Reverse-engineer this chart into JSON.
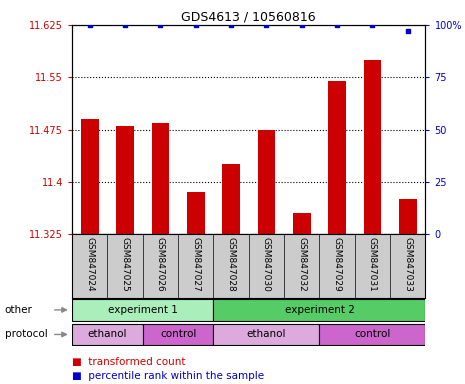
{
  "title": "GDS4613 / 10560816",
  "samples": [
    "GSM847024",
    "GSM847025",
    "GSM847026",
    "GSM847027",
    "GSM847028",
    "GSM847030",
    "GSM847032",
    "GSM847029",
    "GSM847031",
    "GSM847033"
  ],
  "bar_values": [
    11.49,
    11.48,
    11.485,
    11.385,
    11.425,
    11.475,
    11.355,
    11.545,
    11.575,
    11.375
  ],
  "percentile_values": [
    100,
    100,
    100,
    100,
    100,
    100,
    100,
    100,
    100,
    97
  ],
  "ylim_left": [
    11.325,
    11.625
  ],
  "ylim_right": [
    0,
    100
  ],
  "yticks_left": [
    11.325,
    11.4,
    11.475,
    11.55,
    11.625
  ],
  "yticks_right": [
    0,
    25,
    50,
    75,
    100
  ],
  "ytick_labels_right": [
    "0",
    "25",
    "50",
    "75",
    "100%"
  ],
  "bar_color": "#cc0000",
  "dot_color": "#0000cc",
  "bar_width": 0.5,
  "grid_linestyle": "dotted",
  "grid_color": "#000000",
  "grid_linewidth": 0.8,
  "experiment_groups": [
    {
      "label": "experiment 1",
      "start": 0,
      "end": 4,
      "color": "#aaeebb"
    },
    {
      "label": "experiment 2",
      "start": 4,
      "end": 10,
      "color": "#55cc66"
    }
  ],
  "protocol_groups": [
    {
      "label": "ethanol",
      "start": 0,
      "end": 2,
      "color": "#ddaadd"
    },
    {
      "label": "control",
      "start": 2,
      "end": 4,
      "color": "#cc66cc"
    },
    {
      "label": "ethanol",
      "start": 4,
      "end": 7,
      "color": "#ddaadd"
    },
    {
      "label": "control",
      "start": 7,
      "end": 10,
      "color": "#cc66cc"
    }
  ],
  "left_axis_color": "#cc0000",
  "right_axis_color": "#0000cc",
  "background_color": "#ffffff",
  "xlabels_bg": "#cccccc",
  "title_fontsize": 9,
  "tick_fontsize": 7,
  "sample_fontsize": 6.5,
  "row_fontsize": 7.5,
  "legend_fontsize": 7.5
}
